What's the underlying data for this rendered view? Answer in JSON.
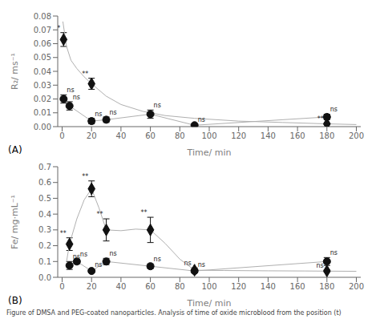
{
  "chart_data": [
    {
      "type": "scatter",
      "label": "(A)",
      "x_label": "Time/ min",
      "y_label": "R₂/ ms⁻¹",
      "xlim": [
        -3,
        203
      ],
      "xticks": [
        0,
        20,
        40,
        60,
        80,
        100,
        120,
        140,
        160,
        180,
        200
      ],
      "ylim": [
        0,
        0.08
      ],
      "yticks": [
        {
          "value": 0,
          "label": "0.00"
        },
        0.01,
        0.02,
        0.03,
        0.04,
        0.05,
        0.06,
        0.07,
        0.08
      ],
      "series": [
        {
          "type": "line",
          "marker": "none",
          "color": "#b0b0b0",
          "x": [
            0.5,
            3,
            6,
            10,
            15,
            20,
            30,
            40,
            55,
            70,
            90,
            120,
            150,
            180,
            200
          ],
          "values": [
            0.076,
            0.058,
            0.048,
            0.042,
            0.036,
            0.031,
            0.022,
            0.016,
            0.011,
            0.008,
            0.006,
            0.004,
            0.003,
            0.002,
            0.0015
          ]
        },
        {
          "type": "line",
          "marker": "none",
          "color": "#b0b0b0",
          "x": [
            1,
            5,
            20,
            30,
            60,
            90,
            180
          ],
          "values": [
            0.02,
            0.015,
            0.004,
            0.005,
            0.009,
            0.001,
            0.007
          ]
        },
        {
          "type": "scatter",
          "marker": "diamond",
          "color": "#111111",
          "x": [
            1,
            20,
            180
          ],
          "values": [
            0.063,
            0.031,
            0.002
          ],
          "errors": [
            0.005,
            0.004,
            0.0005
          ],
          "annotations": [
            "**",
            "**",
            "**"
          ]
        },
        {
          "type": "scatter",
          "marker": "circle",
          "color": "#111111",
          "x": [
            1,
            5,
            20,
            30,
            60,
            90,
            180
          ],
          "values": [
            0.02,
            0.015,
            0.004,
            0.005,
            0.009,
            0.001,
            0.007
          ],
          "errors": [
            0.003,
            0.003,
            0.002,
            0.002,
            0.003,
            0.001,
            0.002
          ],
          "annotations": [
            "ns",
            "ns",
            "ns",
            "ns",
            "ns",
            "ns",
            "ns"
          ]
        }
      ]
    },
    {
      "type": "scatter",
      "label": "(B)",
      "x_label": "Time/ min",
      "y_label": "Fe/ mg·mL⁻¹",
      "xlim": [
        -3,
        203
      ],
      "xticks": [
        0,
        20,
        40,
        60,
        80,
        100,
        120,
        140,
        160,
        180,
        200
      ],
      "ylim": [
        0,
        0.7
      ],
      "yticks": [
        {
          "value": 0,
          "label": "0.0"
        },
        0.1,
        0.2,
        0.3,
        0.4,
        0.5,
        0.6,
        0.7
      ],
      "series": [
        {
          "type": "line",
          "marker": "none",
          "color": "#b0b0b0",
          "x": [
            3,
            5,
            10,
            15,
            20,
            25,
            30,
            40,
            50,
            60,
            70,
            80,
            90,
            110,
            140,
            165,
            180,
            200
          ],
          "values": [
            0.1,
            0.21,
            0.37,
            0.49,
            0.56,
            0.44,
            0.3,
            0.295,
            0.305,
            0.3,
            0.215,
            0.115,
            0.045,
            0.043,
            0.041,
            0.04,
            0.039,
            0.038
          ]
        },
        {
          "type": "line",
          "marker": "none",
          "color": "#b0b0b0",
          "x": [
            5,
            10,
            20,
            30,
            60,
            90,
            180
          ],
          "values": [
            0.075,
            0.1,
            0.04,
            0.1,
            0.07,
            0.04,
            0.1
          ]
        },
        {
          "type": "scatter",
          "marker": "diamond",
          "color": "#111111",
          "x": [
            5,
            20,
            30,
            60,
            90,
            180
          ],
          "values": [
            0.21,
            0.56,
            0.3,
            0.3,
            0.045,
            0.04
          ],
          "errors": [
            0.04,
            0.05,
            0.07,
            0.08,
            0.015,
            0.008
          ],
          "annotations": [
            "**",
            "**",
            "**",
            "**",
            "ns",
            "ns"
          ]
        },
        {
          "type": "scatter",
          "marker": "circle",
          "color": "#111111",
          "x": [
            5,
            10,
            20,
            30,
            60,
            90,
            180
          ],
          "values": [
            0.075,
            0.1,
            0.04,
            0.1,
            0.07,
            0.04,
            0.1
          ],
          "errors": [
            0.025,
            0.015,
            0.01,
            0.02,
            0.015,
            0.01,
            0.025
          ],
          "annotations": [
            "ns",
            "ns",
            "ns",
            "ns",
            "ns",
            "ns",
            "ns"
          ]
        }
      ]
    }
  ],
  "caption": "Figure of DMSA and PEG-coated nanoparticles. Analysis of time of oxide microblood from the position (t)"
}
